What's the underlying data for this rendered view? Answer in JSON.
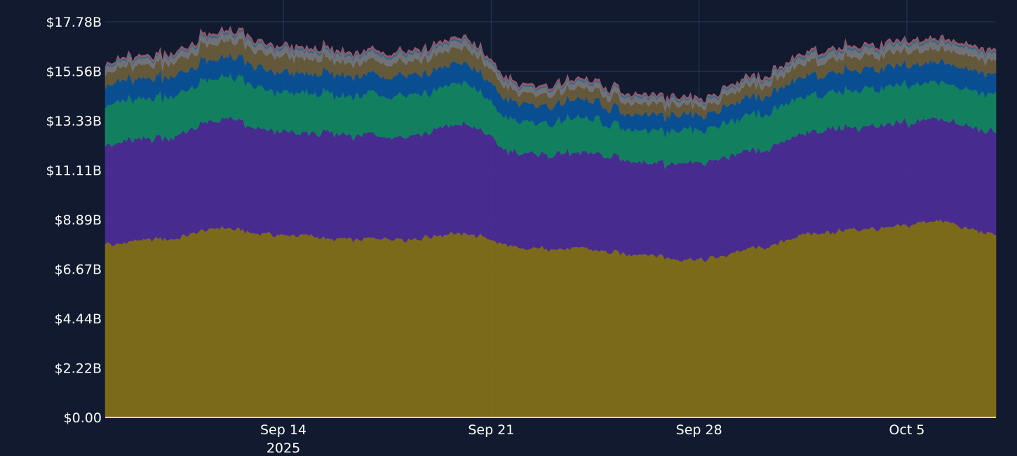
{
  "chart_data": {
    "type": "area",
    "stacked": true,
    "x_axis": {
      "type": "date",
      "ticks": [
        {
          "date": "2025-09-14",
          "label": "Sep 14",
          "sublabel": "2025"
        },
        {
          "date": "2025-09-21",
          "label": "Sep 21",
          "sublabel": ""
        },
        {
          "date": "2025-09-28",
          "label": "Sep 28",
          "sublabel": ""
        },
        {
          "date": "2025-10-05",
          "label": "Oct 5",
          "sublabel": ""
        }
      ],
      "range": [
        "2025-09-08",
        "2025-10-08"
      ]
    },
    "y_axis": {
      "ticks": [
        {
          "value": 0,
          "label": "$0.00"
        },
        {
          "value": 2.22,
          "label": "$2.22B"
        },
        {
          "value": 4.44,
          "label": "$4.44B"
        },
        {
          "value": 6.67,
          "label": "$6.67B"
        },
        {
          "value": 8.89,
          "label": "$8.89B"
        },
        {
          "value": 11.11,
          "label": "$11.11B"
        },
        {
          "value": 13.33,
          "label": "$13.33B"
        },
        {
          "value": 15.56,
          "label": "$15.56B"
        },
        {
          "value": 17.78,
          "label": "$17.78B"
        }
      ],
      "range": [
        0,
        17.78
      ],
      "unit": "USD billions"
    },
    "grid": true,
    "x": [
      "2025-09-08",
      "2025-09-10",
      "2025-09-12",
      "2025-09-14",
      "2025-09-16",
      "2025-09-18",
      "2025-09-20",
      "2025-09-22",
      "2025-09-24",
      "2025-09-26",
      "2025-09-28",
      "2025-09-30",
      "2025-10-02",
      "2025-10-04",
      "2025-10-06",
      "2025-10-08"
    ],
    "series": [
      {
        "color": "#86711a",
        "values": [
          7.8,
          8.0,
          8.5,
          8.2,
          8.0,
          8.0,
          8.3,
          7.6,
          7.6,
          7.3,
          7.1,
          7.6,
          8.3,
          8.5,
          8.8,
          8.3
        ]
      },
      {
        "color": "#4d2c98",
        "values": [
          4.5,
          4.6,
          4.9,
          4.6,
          4.7,
          4.6,
          4.9,
          4.2,
          4.3,
          4.2,
          4.3,
          4.4,
          4.6,
          4.6,
          4.6,
          4.6
        ]
      },
      {
        "color": "#128863",
        "values": [
          1.8,
          1.9,
          1.9,
          1.8,
          1.8,
          1.8,
          1.8,
          1.4,
          1.5,
          1.5,
          1.5,
          1.6,
          1.6,
          1.7,
          1.6,
          1.7
        ]
      },
      {
        "color": "#0a539b",
        "values": [
          0.9,
          0.9,
          0.9,
          0.9,
          0.9,
          0.9,
          0.9,
          0.8,
          0.8,
          0.7,
          0.7,
          0.8,
          0.9,
          0.9,
          0.9,
          0.9
        ]
      },
      {
        "color": "#6a5d3c",
        "values": [
          0.6,
          0.6,
          0.7,
          0.7,
          0.6,
          0.6,
          0.7,
          0.5,
          0.5,
          0.5,
          0.4,
          0.5,
          0.6,
          0.6,
          0.6,
          0.6
        ]
      },
      {
        "color": "#7a7a80",
        "values": [
          0.25,
          0.25,
          0.3,
          0.3,
          0.3,
          0.3,
          0.3,
          0.25,
          0.25,
          0.25,
          0.2,
          0.25,
          0.3,
          0.3,
          0.3,
          0.3
        ]
      },
      {
        "color": "#3a6f8a",
        "values": [
          0.08,
          0.08,
          0.1,
          0.1,
          0.1,
          0.1,
          0.1,
          0.08,
          0.08,
          0.08,
          0.08,
          0.08,
          0.1,
          0.1,
          0.1,
          0.1
        ]
      },
      {
        "color": "#a05a6a",
        "values": [
          0.07,
          0.07,
          0.08,
          0.08,
          0.08,
          0.08,
          0.08,
          0.07,
          0.07,
          0.07,
          0.07,
          0.07,
          0.08,
          0.08,
          0.08,
          0.08
        ]
      }
    ],
    "colors": {
      "background": "#111a2e",
      "grid": "#2a3a5c",
      "baseline": "#e8d88a",
      "text": "#ffffff"
    }
  }
}
